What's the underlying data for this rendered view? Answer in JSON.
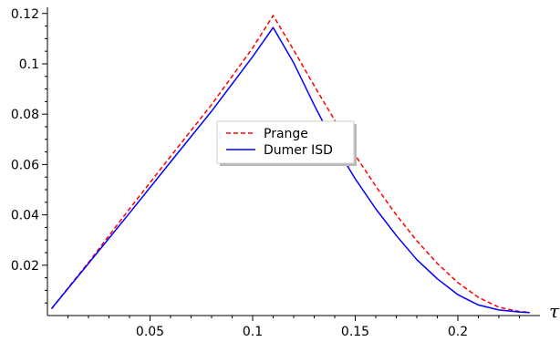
{
  "chart_data": {
    "type": "line",
    "xlabel": "τ",
    "ylabel": "",
    "xlim": [
      0.0,
      0.24
    ],
    "ylim": [
      0.0,
      0.121
    ],
    "xticks": [
      {
        "value": 0.05,
        "label": "0.05"
      },
      {
        "value": 0.1,
        "label": "0.1"
      },
      {
        "value": 0.15,
        "label": "0.15"
      },
      {
        "value": 0.2,
        "label": "0.2"
      }
    ],
    "yticks": [
      {
        "value": 0.02,
        "label": "0.02"
      },
      {
        "value": 0.04,
        "label": "0.04"
      },
      {
        "value": 0.06,
        "label": "0.06"
      },
      {
        "value": 0.08,
        "label": "0.08"
      },
      {
        "value": 0.1,
        "label": "0.1"
      },
      {
        "value": 0.12,
        "label": "0.12"
      }
    ],
    "grid": false,
    "legend_position": "center",
    "series": [
      {
        "name": "Prange",
        "color": "#ff0000",
        "style": "dashed",
        "x": [
          0.002,
          0.02,
          0.04,
          0.06,
          0.08,
          0.1,
          0.11,
          0.12,
          0.13,
          0.14,
          0.15,
          0.16,
          0.17,
          0.18,
          0.19,
          0.2,
          0.21,
          0.22,
          0.23,
          0.235
        ],
        "y": [
          0.0027,
          0.0211,
          0.0424,
          0.0632,
          0.0838,
          0.1063,
          0.1192,
          0.1055,
          0.0913,
          0.0776,
          0.0637,
          0.0514,
          0.04,
          0.0297,
          0.0207,
          0.0131,
          0.0072,
          0.0033,
          0.0016,
          0.0013
        ]
      },
      {
        "name": "Dumer ISD",
        "color": "#0000ff",
        "style": "solid",
        "x": [
          0.002,
          0.02,
          0.04,
          0.06,
          0.08,
          0.1,
          0.11,
          0.12,
          0.13,
          0.14,
          0.15,
          0.16,
          0.17,
          0.18,
          0.19,
          0.2,
          0.21,
          0.22,
          0.23,
          0.235
        ],
        "y": [
          0.0027,
          0.0207,
          0.0407,
          0.061,
          0.0812,
          0.1028,
          0.1144,
          0.1004,
          0.0836,
          0.0678,
          0.0543,
          0.0424,
          0.0318,
          0.0222,
          0.0146,
          0.0083,
          0.0042,
          0.0022,
          0.0014,
          0.0012
        ]
      }
    ]
  }
}
